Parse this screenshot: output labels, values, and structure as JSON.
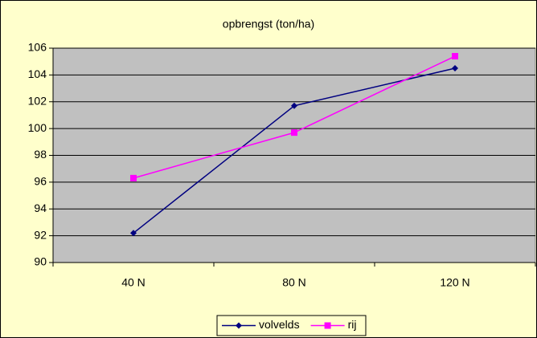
{
  "chart_data": {
    "type": "line",
    "title": "opbrengst (ton/ha)",
    "categories": [
      "40 N",
      "80 N",
      "120 N"
    ],
    "series": [
      {
        "name": "volvelds",
        "color": "#000080",
        "marker": "diamond",
        "values": [
          92.2,
          101.7,
          104.5
        ]
      },
      {
        "name": "rij",
        "color": "#ff00ff",
        "marker": "square",
        "values": [
          96.3,
          99.7,
          105.4
        ]
      }
    ],
    "ylim": [
      90,
      106
    ],
    "yticks": [
      90,
      92,
      94,
      96,
      98,
      100,
      102,
      104,
      106
    ],
    "grid": true,
    "legend": "bottom"
  }
}
